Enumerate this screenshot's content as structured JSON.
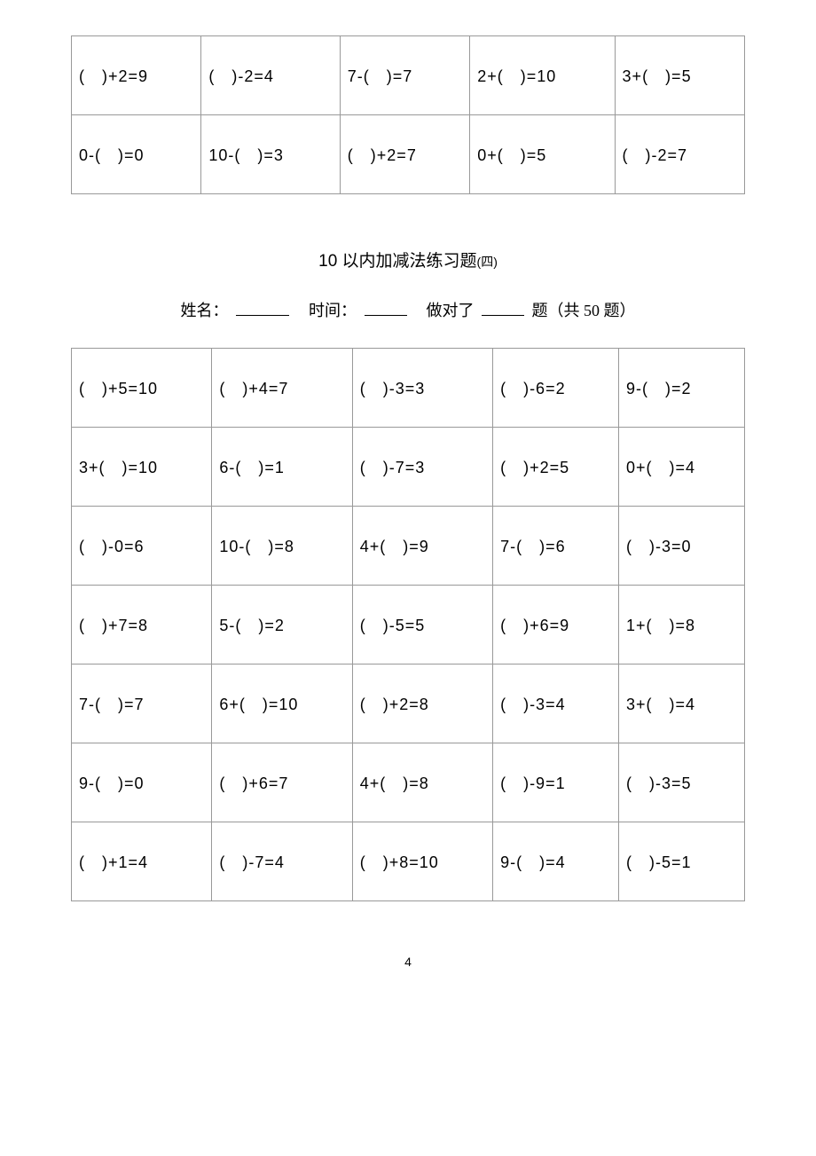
{
  "table1": {
    "columns": 5,
    "rows": [
      [
        "(　)+2=9",
        "(　)-2=4",
        "7-(　)=7",
        "2+(　)=10",
        "3+(　)=5"
      ],
      [
        "0-(　)=0",
        "10-(　)=3",
        "(　)+2=7",
        "0+(　)=5",
        "(　)-2=7"
      ]
    ]
  },
  "section_title": {
    "prefix": "10 以内加减法练习题",
    "suffix": "(四)"
  },
  "info": {
    "name_label": "姓名：",
    "time_label": "时间：",
    "correct_label": "做对了",
    "suffix": "题（共 50 题）"
  },
  "table2": {
    "columns": 5,
    "rows": [
      [
        "(　)+5=10",
        "(　)+4=7",
        "(　)-3=3",
        "(　)-6=2",
        "9-(　)=2"
      ],
      [
        "3+(　)=10",
        "6-(　)=1",
        "(　)-7=3",
        "(　)+2=5",
        "0+(　)=4"
      ],
      [
        "(　)-0=6",
        "10-(　)=8",
        "4+(　)=9",
        "7-(　)=6",
        "(　)-3=0"
      ],
      [
        "(　)+7=8",
        "5-(　)=2",
        "(　)-5=5",
        "(　)+6=9",
        "1+(　)=8"
      ],
      [
        "7-(　)=7",
        "6+(　)=10",
        "(　)+2=8",
        "(　)-3=4",
        "3+(　)=4"
      ],
      [
        "9-(　)=0",
        "(　)+6=7",
        "4+(　)=8",
        "(　)-9=1",
        "(　)-3=5"
      ],
      [
        "(　)+1=4",
        "(　)-7=4",
        "(　)+8=10",
        "9-(　)=4",
        "(　)-5=1"
      ]
    ]
  },
  "page_number": "4"
}
